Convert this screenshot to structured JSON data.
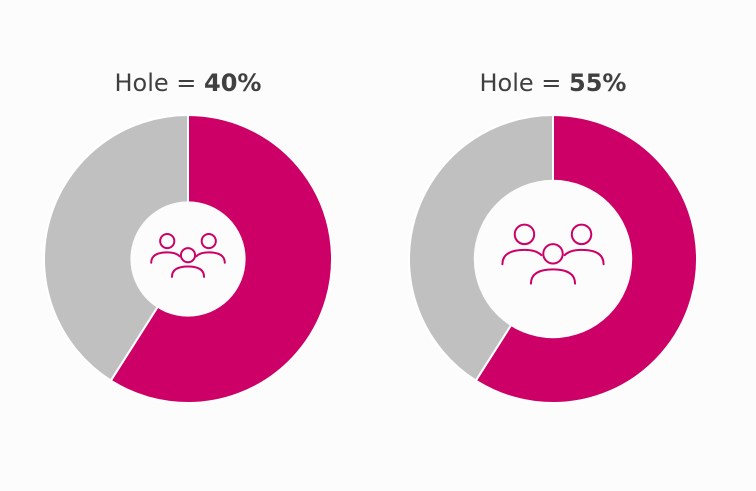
{
  "chart_data": [
    {
      "type": "pie",
      "title_prefix": "Hole = ",
      "title_value": "40%",
      "hole": 0.4,
      "values": [
        59,
        41
      ],
      "colors": [
        "#cc0066",
        "#c0c0c0"
      ],
      "center_icon": "people-group-icon"
    },
    {
      "type": "pie",
      "title_prefix": "Hole = ",
      "title_value": "55%",
      "hole": 0.55,
      "values": [
        59,
        41
      ],
      "colors": [
        "#cc0066",
        "#c0c0c0"
      ],
      "center_icon": "people-group-icon"
    }
  ],
  "colors": {
    "background": "#fcfcfc",
    "icon": "#cc0066",
    "separator": "#ffffff"
  }
}
